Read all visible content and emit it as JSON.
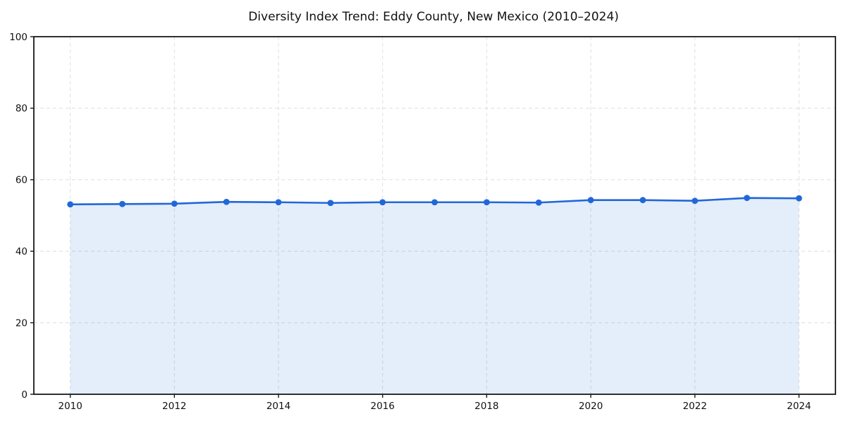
{
  "chart_data": {
    "type": "line",
    "title": "Diversity Index Trend: Eddy County, New Mexico (2010–2024)",
    "x": [
      2010,
      2011,
      2012,
      2013,
      2014,
      2015,
      2016,
      2017,
      2018,
      2019,
      2020,
      2021,
      2022,
      2023,
      2024
    ],
    "series": [
      {
        "name": "Diversity Index",
        "values": [
          53.1,
          53.2,
          53.3,
          53.8,
          53.7,
          53.5,
          53.7,
          53.7,
          53.7,
          53.6,
          54.3,
          54.3,
          54.1,
          54.9,
          54.8
        ]
      }
    ],
    "xlabel": "",
    "ylabel": "",
    "xlim": [
      2009.3,
      2024.7
    ],
    "ylim": [
      0,
      100
    ],
    "x_tick_values": [
      2010,
      2012,
      2014,
      2016,
      2018,
      2020,
      2022,
      2024
    ],
    "x_tick_labels": [
      "2010",
      "2012",
      "2014",
      "2016",
      "2018",
      "2020",
      "2022",
      "2024"
    ],
    "y_tick_values": [
      0,
      20,
      40,
      60,
      80,
      100
    ],
    "y_tick_labels": [
      "0",
      "20",
      "40",
      "60",
      "80",
      "100"
    ],
    "grid": "dashed",
    "legend_position": "none",
    "marker": "circle",
    "colors": {
      "line": "#2068d8",
      "marker": "#2068d8",
      "fill": "#2068d8",
      "fill_opacity": 0.12,
      "grid": "#dedede",
      "axis": "#1a1a1a",
      "title_text": "#111111",
      "tick_text": "#111111",
      "background": "#ffffff"
    }
  }
}
